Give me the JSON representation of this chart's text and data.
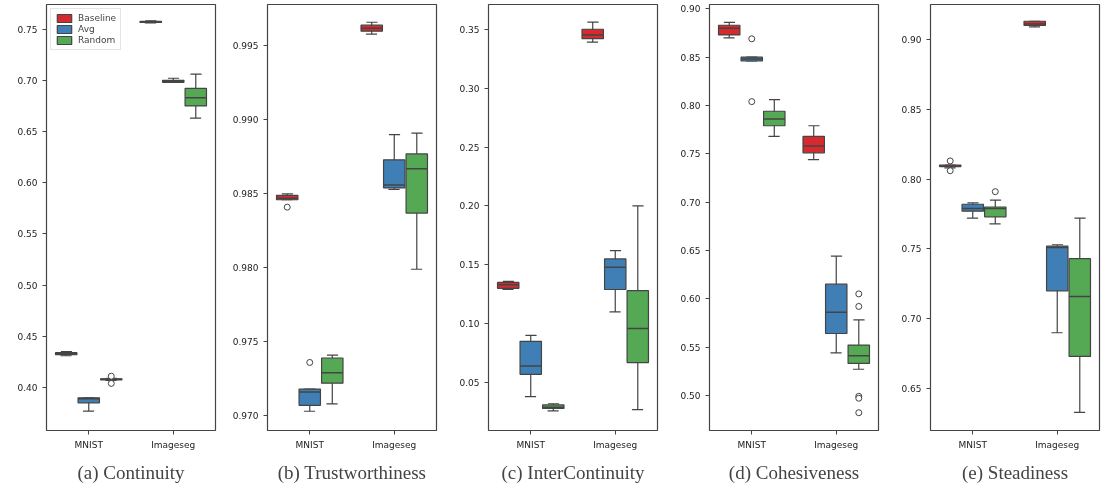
{
  "chart_data": [
    {
      "type": "box",
      "title": "(a) Continuity",
      "categories": [
        "MNIST",
        "Imageseg"
      ],
      "ylim": [
        0.358,
        0.774
      ],
      "yticks": [
        {
          "value": 0.4,
          "label": "0.40"
        },
        {
          "value": 0.45,
          "label": "0.45"
        },
        {
          "value": 0.5,
          "label": "0.50"
        },
        {
          "value": 0.55,
          "label": "0.55"
        },
        {
          "value": 0.6,
          "label": "0.60"
        },
        {
          "value": 0.65,
          "label": "0.65"
        },
        {
          "value": 0.7,
          "label": "0.70"
        },
        {
          "value": 0.75,
          "label": "0.75"
        }
      ],
      "legend": "top left",
      "series": [
        {
          "name": "Baseline",
          "color": "#d62a2f",
          "boxes": [
            {
              "low": 0.431,
              "q1": 0.432,
              "median": 0.433,
              "q3": 0.434,
              "high": 0.435
            },
            {
              "low": 0.756,
              "q1": 0.7565,
              "median": 0.757,
              "q3": 0.7575,
              "high": 0.758
            }
          ]
        },
        {
          "name": "Avg",
          "color": "#3f7fb5",
          "boxes": [
            {
              "low": 0.377,
              "q1": 0.385,
              "median": 0.389,
              "q3": 0.39,
              "high": 0.39
            },
            {
              "low": 0.698,
              "q1": 0.698,
              "median": 0.699,
              "q3": 0.7,
              "high": 0.702
            }
          ]
        },
        {
          "name": "Random",
          "color": "#55a854",
          "boxes": [
            {
              "low": 0.407,
              "q1": 0.4075,
              "median": 0.408,
              "q3": 0.4085,
              "high": 0.409,
              "outliers": [
                0.411,
                0.404
              ]
            },
            {
              "low": 0.663,
              "q1": 0.675,
              "median": 0.683,
              "q3": 0.692,
              "high": 0.706
            }
          ]
        }
      ]
    },
    {
      "type": "box",
      "title": "(b) Trustworthiness",
      "categories": [
        "MNIST",
        "Imageseg"
      ],
      "ylim": [
        0.969,
        0.9978
      ],
      "yticks": [
        {
          "value": 0.97,
          "label": "0.970"
        },
        {
          "value": 0.975,
          "label": "0.975"
        },
        {
          "value": 0.98,
          "label": "0.980"
        },
        {
          "value": 0.985,
          "label": "0.985"
        },
        {
          "value": 0.99,
          "label": "0.990"
        },
        {
          "value": 0.995,
          "label": "0.995"
        }
      ],
      "series": [
        {
          "color": "#d62a2f",
          "boxes": [
            {
              "low": 0.9846,
              "q1": 0.9846,
              "median": 0.9847,
              "q3": 0.9849,
              "high": 0.985,
              "outliers": [
                0.9841
              ]
            },
            {
              "low": 0.9958,
              "q1": 0.996,
              "median": 0.9962,
              "q3": 0.9964,
              "high": 0.9966
            }
          ]
        },
        {
          "color": "#3f7fb5",
          "boxes": [
            {
              "low": 0.9703,
              "q1": 0.9707,
              "median": 0.9716,
              "q3": 0.9718,
              "high": 0.9718,
              "outliers": [
                0.9736
              ]
            },
            {
              "low": 0.9853,
              "q1": 0.9854,
              "median": 0.9856,
              "q3": 0.9873,
              "high": 0.989
            }
          ]
        },
        {
          "color": "#55a854",
          "boxes": [
            {
              "low": 0.9708,
              "q1": 0.9722,
              "median": 0.9729,
              "q3": 0.9739,
              "high": 0.9741
            },
            {
              "low": 0.9799,
              "q1": 0.9837,
              "median": 0.9867,
              "q3": 0.9877,
              "high": 0.9891
            }
          ]
        }
      ]
    },
    {
      "type": "box",
      "title": "(c) InterContinuity",
      "categories": [
        "MNIST",
        "Imageseg"
      ],
      "ylim": [
        0.0093,
        0.371
      ],
      "yticks": [
        {
          "value": 0.05,
          "label": "0.05"
        },
        {
          "value": 0.1,
          "label": "0.10"
        },
        {
          "value": 0.15,
          "label": "0.15"
        },
        {
          "value": 0.2,
          "label": "0.20"
        },
        {
          "value": 0.25,
          "label": "0.25"
        },
        {
          "value": 0.3,
          "label": "0.30"
        },
        {
          "value": 0.35,
          "label": "0.35"
        }
      ],
      "series": [
        {
          "color": "#d62a2f",
          "boxes": [
            {
              "low": 0.129,
              "q1": 0.13,
              "median": 0.133,
              "q3": 0.135,
              "high": 0.136
            },
            {
              "low": 0.339,
              "q1": 0.342,
              "median": 0.345,
              "q3": 0.35,
              "high": 0.356
            }
          ]
        },
        {
          "color": "#3f7fb5",
          "boxes": [
            {
              "low": 0.038,
              "q1": 0.057,
              "median": 0.064,
              "q3": 0.085,
              "high": 0.09
            },
            {
              "low": 0.11,
              "q1": 0.129,
              "median": 0.148,
              "q3": 0.155,
              "high": 0.162
            }
          ]
        },
        {
          "color": "#55a854",
          "boxes": [
            {
              "low": 0.026,
              "q1": 0.028,
              "median": 0.029,
              "q3": 0.031,
              "high": 0.032
            },
            {
              "low": 0.027,
              "q1": 0.067,
              "median": 0.096,
              "q3": 0.128,
              "high": 0.2
            }
          ]
        }
      ]
    },
    {
      "type": "box",
      "title": "(d) Cohesiveness",
      "categories": [
        "MNIST",
        "Imageseg"
      ],
      "ylim": [
        0.4636,
        0.9045
      ],
      "yticks": [
        {
          "value": 0.5,
          "label": "0.50"
        },
        {
          "value": 0.55,
          "label": "0.55"
        },
        {
          "value": 0.6,
          "label": "0.60"
        },
        {
          "value": 0.65,
          "label": "0.65"
        },
        {
          "value": 0.7,
          "label": "0.70"
        },
        {
          "value": 0.75,
          "label": "0.75"
        },
        {
          "value": 0.8,
          "label": "0.80"
        },
        {
          "value": 0.85,
          "label": "0.85"
        },
        {
          "value": 0.9,
          "label": "0.90"
        }
      ],
      "series": [
        {
          "color": "#d62a2f",
          "boxes": [
            {
              "low": 0.87,
              "q1": 0.873,
              "median": 0.88,
              "q3": 0.883,
              "high": 0.886
            },
            {
              "low": 0.744,
              "q1": 0.751,
              "median": 0.758,
              "q3": 0.768,
              "high": 0.779
            }
          ]
        },
        {
          "color": "#3f7fb5",
          "boxes": [
            {
              "low": 0.846,
              "q1": 0.846,
              "median": 0.848,
              "q3": 0.85,
              "high": 0.85,
              "outliers": [
                0.869,
                0.804
              ]
            },
            {
              "low": 0.544,
              "q1": 0.564,
              "median": 0.586,
              "q3": 0.615,
              "high": 0.644
            }
          ]
        },
        {
          "color": "#55a854",
          "boxes": [
            {
              "low": 0.768,
              "q1": 0.779,
              "median": 0.786,
              "q3": 0.794,
              "high": 0.806
            },
            {
              "low": 0.527,
              "q1": 0.533,
              "median": 0.541,
              "q3": 0.552,
              "high": 0.578,
              "outliers": [
                0.605,
                0.592,
                0.499,
                0.497,
                0.482
              ]
            }
          ]
        }
      ]
    },
    {
      "type": "box",
      "title": "(e) Steadiness",
      "categories": [
        "MNIST",
        "Imageseg"
      ],
      "ylim": [
        0.62,
        0.925
      ],
      "yticks": [
        {
          "value": 0.65,
          "label": "0.65"
        },
        {
          "value": 0.7,
          "label": "0.70"
        },
        {
          "value": 0.75,
          "label": "0.75"
        },
        {
          "value": 0.8,
          "label": "0.80"
        },
        {
          "value": 0.85,
          "label": "0.85"
        },
        {
          "value": 0.9,
          "label": "0.90"
        }
      ],
      "series": [
        {
          "color": "#d62a2f",
          "boxes": [
            {
              "low": 0.808,
              "q1": 0.809,
              "median": 0.809,
              "q3": 0.81,
              "high": 0.81,
              "outliers": [
                0.813,
                0.806
              ]
            },
            {
              "low": 0.909,
              "q1": 0.91,
              "median": 0.911,
              "q3": 0.913,
              "high": 0.913
            }
          ]
        },
        {
          "color": "#3f7fb5",
          "boxes": [
            {
              "low": 0.772,
              "q1": 0.777,
              "median": 0.779,
              "q3": 0.782,
              "high": 0.783
            },
            {
              "low": 0.69,
              "q1": 0.72,
              "median": 0.751,
              "q3": 0.752,
              "high": 0.753
            }
          ]
        },
        {
          "color": "#55a854",
          "boxes": [
            {
              "low": 0.768,
              "q1": 0.773,
              "median": 0.779,
              "q3": 0.78,
              "high": 0.785,
              "outliers": [
                0.791
              ]
            },
            {
              "low": 0.633,
              "q1": 0.673,
              "median": 0.716,
              "q3": 0.743,
              "high": 0.772
            }
          ]
        }
      ]
    }
  ]
}
